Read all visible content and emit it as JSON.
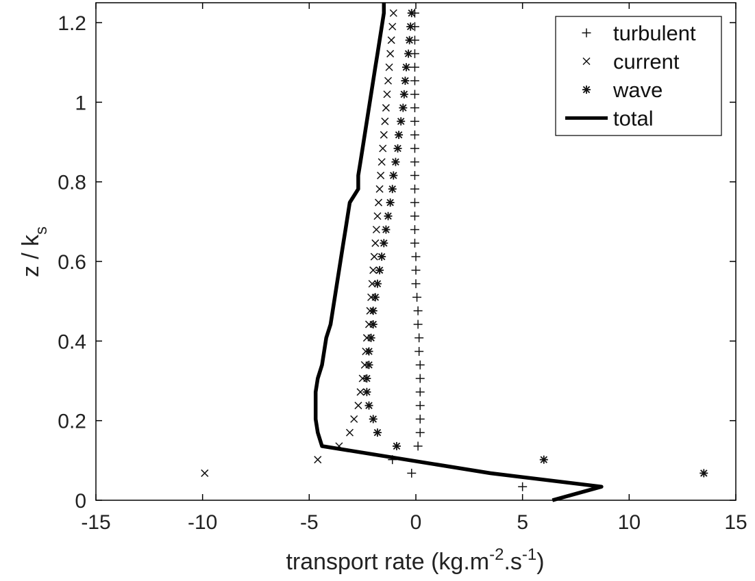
{
  "chart_data": {
    "type": "scatter",
    "title": "",
    "xlabel": "transport rate (kg.m",
    "xlabel_sup1": "-2",
    "xlabel_mid": ".s",
    "xlabel_sup2": "-1",
    "xlabel_end": ")",
    "ylabel_main": "z / k",
    "ylabel_sub": "s",
    "xlim": [
      -15,
      15
    ],
    "ylim": [
      0,
      1.25
    ],
    "x_ticks": [
      -15,
      -10,
      -5,
      0,
      5,
      10,
      15
    ],
    "y_ticks": [
      0,
      0.2,
      0.4,
      0.6,
      0.8,
      1,
      1.2
    ],
    "x_tick_labels": [
      "-15",
      "-10",
      "-5",
      "0",
      "5",
      "10",
      "15"
    ],
    "y_tick_labels": [
      "0",
      "0.2",
      "0.4",
      "0.6",
      "0.8",
      "1",
      "1.2"
    ],
    "grid": false,
    "legend_position": "top-right",
    "series": [
      {
        "name": "turbulent",
        "marker": "plus",
        "points": [
          [
            5.0,
            0.034
          ],
          [
            -0.2,
            0.068
          ],
          [
            -1.1,
            0.102
          ],
          [
            0.1,
            0.136
          ],
          [
            0.2,
            0.17
          ],
          [
            0.2,
            0.204
          ],
          [
            0.2,
            0.238
          ],
          [
            0.2,
            0.272
          ],
          [
            0.2,
            0.306
          ],
          [
            0.2,
            0.34
          ],
          [
            0.15,
            0.374
          ],
          [
            0.15,
            0.408
          ],
          [
            0.1,
            0.442
          ],
          [
            0.1,
            0.476
          ],
          [
            0.05,
            0.51
          ],
          [
            0.0,
            0.544
          ],
          [
            0.0,
            0.578
          ],
          [
            0.0,
            0.612
          ],
          [
            -0.05,
            0.646
          ],
          [
            -0.05,
            0.68
          ],
          [
            -0.05,
            0.714
          ],
          [
            -0.05,
            0.748
          ],
          [
            -0.05,
            0.782
          ],
          [
            -0.05,
            0.816
          ],
          [
            -0.05,
            0.85
          ],
          [
            -0.05,
            0.884
          ],
          [
            -0.05,
            0.918
          ],
          [
            -0.05,
            0.952
          ],
          [
            -0.05,
            0.986
          ],
          [
            -0.05,
            1.02
          ],
          [
            -0.05,
            1.054
          ],
          [
            -0.05,
            1.088
          ],
          [
            -0.05,
            1.122
          ],
          [
            -0.05,
            1.156
          ],
          [
            -0.05,
            1.19
          ],
          [
            -0.05,
            1.224
          ]
        ]
      },
      {
        "name": "current",
        "marker": "x",
        "points": [
          [
            -9.9,
            0.068
          ],
          [
            -4.6,
            0.102
          ],
          [
            -3.6,
            0.136
          ],
          [
            -3.1,
            0.17
          ],
          [
            -2.9,
            0.204
          ],
          [
            -2.7,
            0.238
          ],
          [
            -2.6,
            0.272
          ],
          [
            -2.5,
            0.306
          ],
          [
            -2.4,
            0.34
          ],
          [
            -2.35,
            0.374
          ],
          [
            -2.3,
            0.408
          ],
          [
            -2.2,
            0.442
          ],
          [
            -2.15,
            0.476
          ],
          [
            -2.1,
            0.51
          ],
          [
            -2.05,
            0.544
          ],
          [
            -2.0,
            0.578
          ],
          [
            -1.95,
            0.612
          ],
          [
            -1.9,
            0.646
          ],
          [
            -1.85,
            0.68
          ],
          [
            -1.8,
            0.714
          ],
          [
            -1.75,
            0.748
          ],
          [
            -1.7,
            0.782
          ],
          [
            -1.65,
            0.816
          ],
          [
            -1.6,
            0.85
          ],
          [
            -1.55,
            0.884
          ],
          [
            -1.5,
            0.918
          ],
          [
            -1.45,
            0.952
          ],
          [
            -1.4,
            0.986
          ],
          [
            -1.35,
            1.02
          ],
          [
            -1.3,
            1.054
          ],
          [
            -1.25,
            1.088
          ],
          [
            -1.2,
            1.122
          ],
          [
            -1.15,
            1.156
          ],
          [
            -1.1,
            1.19
          ],
          [
            -1.05,
            1.224
          ]
        ]
      },
      {
        "name": "wave",
        "marker": "asterisk",
        "points": [
          [
            13.5,
            0.068
          ],
          [
            6.0,
            0.102
          ],
          [
            -0.9,
            0.136
          ],
          [
            -1.8,
            0.17
          ],
          [
            -2.0,
            0.204
          ],
          [
            -2.2,
            0.238
          ],
          [
            -2.3,
            0.272
          ],
          [
            -2.3,
            0.306
          ],
          [
            -2.2,
            0.34
          ],
          [
            -2.2,
            0.374
          ],
          [
            -2.1,
            0.408
          ],
          [
            -2.0,
            0.442
          ],
          [
            -2.0,
            0.476
          ],
          [
            -1.9,
            0.51
          ],
          [
            -1.8,
            0.544
          ],
          [
            -1.7,
            0.578
          ],
          [
            -1.6,
            0.612
          ],
          [
            -1.5,
            0.646
          ],
          [
            -1.4,
            0.68
          ],
          [
            -1.3,
            0.714
          ],
          [
            -1.2,
            0.748
          ],
          [
            -1.1,
            0.782
          ],
          [
            -1.05,
            0.816
          ],
          [
            -0.95,
            0.85
          ],
          [
            -0.85,
            0.884
          ],
          [
            -0.8,
            0.918
          ],
          [
            -0.7,
            0.952
          ],
          [
            -0.6,
            0.986
          ],
          [
            -0.55,
            1.02
          ],
          [
            -0.5,
            1.054
          ],
          [
            -0.45,
            1.088
          ],
          [
            -0.35,
            1.122
          ],
          [
            -0.3,
            1.156
          ],
          [
            -0.25,
            1.19
          ],
          [
            -0.2,
            1.224
          ]
        ]
      },
      {
        "name": "total",
        "marker": "line",
        "points": [
          [
            6.4,
            0.0
          ],
          [
            8.7,
            0.034
          ],
          [
            3.5,
            0.068
          ],
          [
            -4.4,
            0.136
          ],
          [
            -4.6,
            0.17
          ],
          [
            -4.7,
            0.204
          ],
          [
            -4.7,
            0.238
          ],
          [
            -4.7,
            0.272
          ],
          [
            -4.6,
            0.306
          ],
          [
            -4.4,
            0.34
          ],
          [
            -4.3,
            0.374
          ],
          [
            -4.2,
            0.408
          ],
          [
            -4.0,
            0.442
          ],
          [
            -3.9,
            0.476
          ],
          [
            -3.8,
            0.51
          ],
          [
            -3.7,
            0.544
          ],
          [
            -3.6,
            0.578
          ],
          [
            -3.5,
            0.612
          ],
          [
            -3.4,
            0.646
          ],
          [
            -3.3,
            0.68
          ],
          [
            -3.2,
            0.714
          ],
          [
            -3.1,
            0.748
          ],
          [
            -2.7,
            0.782
          ],
          [
            -2.7,
            0.816
          ],
          [
            -2.6,
            0.85
          ],
          [
            -2.5,
            0.884
          ],
          [
            -2.4,
            0.918
          ],
          [
            -2.3,
            0.952
          ],
          [
            -2.2,
            0.986
          ],
          [
            -2.1,
            1.02
          ],
          [
            -2.0,
            1.054
          ],
          [
            -1.9,
            1.088
          ],
          [
            -1.8,
            1.122
          ],
          [
            -1.7,
            1.156
          ],
          [
            -1.6,
            1.19
          ],
          [
            -1.5,
            1.224
          ],
          [
            -1.5,
            1.25
          ]
        ]
      }
    ],
    "colors": {
      "markers": "#111111",
      "line": "#000000",
      "axis": "#000000",
      "text": "#222222"
    }
  }
}
